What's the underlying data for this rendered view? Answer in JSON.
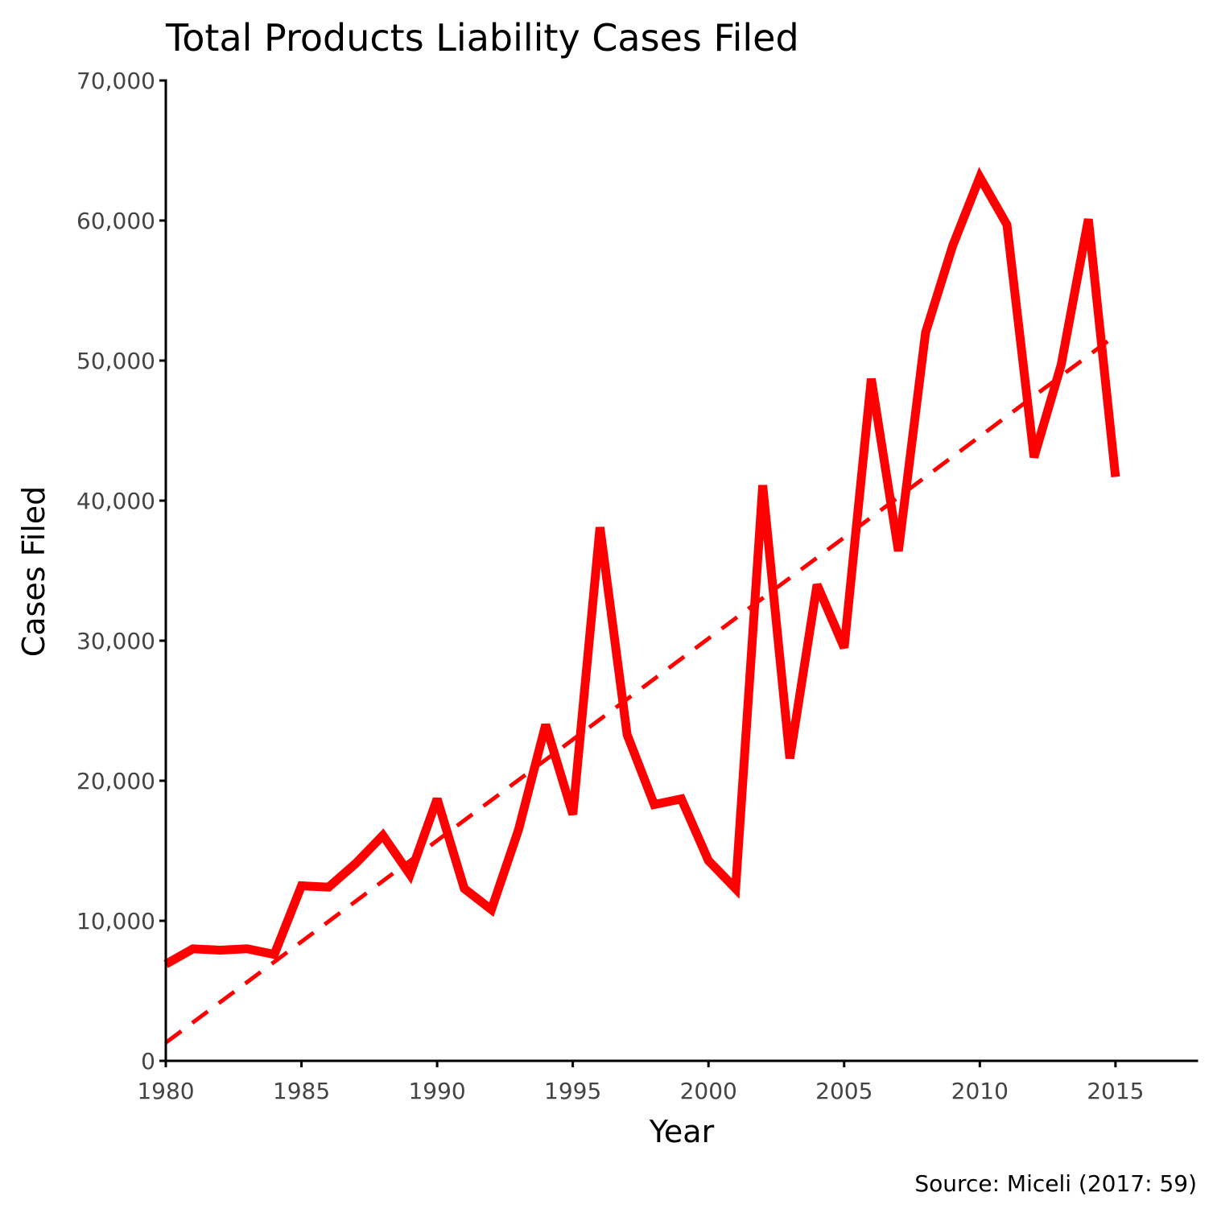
{
  "chart_data": {
    "type": "line",
    "title": "Total Products Liability Cases Filed",
    "xlabel": "Year",
    "ylabel": "Cases Filed",
    "caption": "Source: Miceli (2017: 59)",
    "xlim": [
      1980,
      2018
    ],
    "ylim": [
      0,
      70000
    ],
    "x_ticks": [
      1980,
      1985,
      1990,
      1995,
      2000,
      2005,
      2010,
      2015
    ],
    "x_tick_labels": [
      "1980",
      "1985",
      "1990",
      "1995",
      "2000",
      "2005",
      "2010",
      "2015"
    ],
    "y_ticks": [
      0,
      10000,
      20000,
      30000,
      40000,
      50000,
      60000,
      70000
    ],
    "y_tick_labels": [
      "0",
      "10,000",
      "20,000",
      "30,000",
      "40,000",
      "50,000",
      "60,000",
      "70,000"
    ],
    "grid": false,
    "legend": "none",
    "colors": {
      "series": "#ff0000",
      "trend": "#ff0000",
      "axis": "#000000"
    },
    "series": [
      {
        "style": "solid",
        "x": [
          1980,
          1981,
          1982,
          1983,
          1984,
          1985,
          1986,
          1987,
          1988,
          1989,
          1990,
          1991,
          1992,
          1993,
          1994,
          1995,
          1996,
          1997,
          1998,
          1999,
          2000,
          2001,
          2002,
          2003,
          2004,
          2005,
          2006,
          2007,
          2008,
          2009,
          2010,
          2011,
          2012,
          2013,
          2014,
          2015
        ],
        "values": [
          6900,
          8000,
          7900,
          8000,
          7600,
          12500,
          12400,
          14100,
          16100,
          13300,
          18700,
          12300,
          10800,
          16500,
          24000,
          17600,
          38100,
          23300,
          18300,
          18700,
          14300,
          12300,
          41100,
          21600,
          34000,
          29500,
          48700,
          36400,
          52000,
          58200,
          63100,
          59700,
          43100,
          49700,
          60100,
          41700
        ]
      },
      {
        "style": "dashed",
        "x": [
          1980,
          2015
        ],
        "values": [
          1300,
          51800
        ]
      }
    ]
  }
}
